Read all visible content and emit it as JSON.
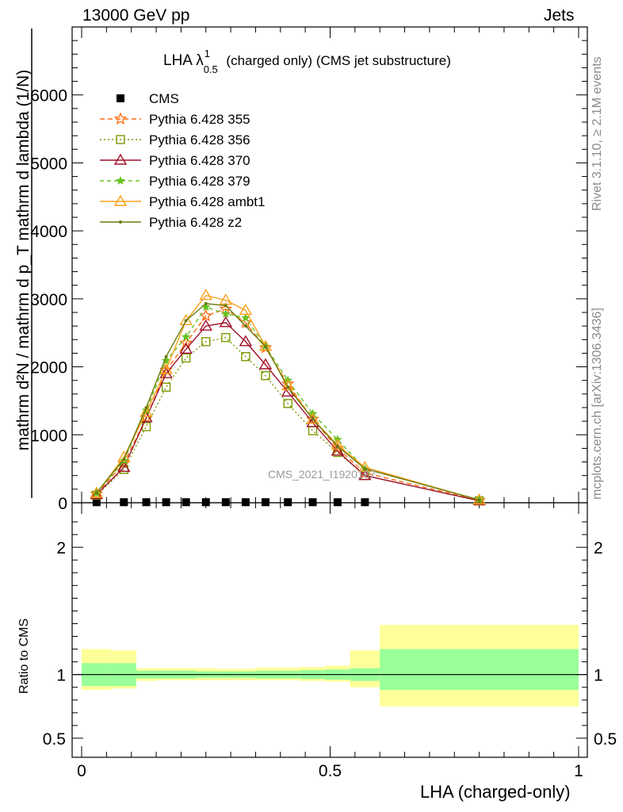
{
  "header": {
    "energy": "13000 GeV pp",
    "category": "Jets"
  },
  "side_labels": {
    "rivet": "Rivet 3.1.10, ≥ 2.1M events",
    "mcplots": "mcplots.cern.ch [arXiv:1306.3436]"
  },
  "watermark": "CMS_2021_I1920187",
  "plot_title": {
    "main": "LHA λ",
    "sup": "1",
    "sub": "0.5",
    "rest": " (charged only) (CMS jet substructure)"
  },
  "ylabel_upper": "mathrm d²N / mathrm d p_T mathrm d lambda (1/N)",
  "ylabel_ratio": "Ratio to CMS",
  "xlabel": "LHA (charged-only)",
  "colors": {
    "cms": "#000000",
    "p355": "#ff6d12",
    "p356": "#7a9a01",
    "p370": "#a0102a",
    "p379": "#66c21f",
    "ambt1": "#f7a11b",
    "z2": "#6b7c0e",
    "band_inner": "#99ff99",
    "band_outer": "#ffff99"
  },
  "chart_data": [
    {
      "type": "line",
      "title": "LHA λ^1_0.5 (charged only) (CMS jet substructure)",
      "xlim": [
        0,
        1
      ],
      "ylim": [
        0,
        7000
      ],
      "x_ticks": [
        0,
        0.5,
        1
      ],
      "y_ticks": [
        0,
        1000,
        2000,
        3000,
        4000,
        5000,
        6000
      ],
      "y_tick_labels": [
        "0",
        "1000",
        "2000",
        "3000",
        "4000",
        "5000",
        "6000"
      ],
      "legend_position": "top-left",
      "x": [
        0.03,
        0.085,
        0.13,
        0.17,
        0.21,
        0.25,
        0.29,
        0.33,
        0.37,
        0.415,
        0.465,
        0.515,
        0.57,
        0.8
      ],
      "series": [
        {
          "name": "CMS",
          "marker": "square",
          "values": [
            8,
            8,
            8,
            8,
            8,
            8,
            8,
            8,
            8,
            8,
            8,
            8,
            8,
            null
          ]
        },
        {
          "name": "Pythia 6.428 355",
          "marker": "star",
          "dash": "6,4",
          "values": [
            130,
            580,
            1250,
            1950,
            2350,
            2750,
            2850,
            2650,
            2280,
            1750,
            1230,
            800,
            440,
            35
          ]
        },
        {
          "name": "Pythia 6.428 356",
          "marker": "open-square",
          "dash": "2,3",
          "values": [
            110,
            490,
            1120,
            1700,
            2130,
            2370,
            2430,
            2150,
            1870,
            1460,
            1060,
            740,
            400,
            28
          ]
        },
        {
          "name": "Pythia 6.428 370",
          "marker": "open-triangle",
          "dash": "",
          "values": [
            120,
            520,
            1250,
            1900,
            2260,
            2600,
            2650,
            2370,
            2030,
            1630,
            1180,
            760,
            400,
            30
          ]
        },
        {
          "name": "Pythia 6.428 379",
          "marker": "star-small",
          "dash": "5,4",
          "values": [
            140,
            620,
            1360,
            2090,
            2440,
            2880,
            2780,
            2720,
            2300,
            1800,
            1310,
            930,
            500,
            45
          ]
        },
        {
          "name": "Pythia 6.428 ambt1",
          "marker": "open-triangle",
          "dash": "",
          "values": [
            140,
            670,
            1330,
            1960,
            2680,
            3050,
            2980,
            2830,
            2300,
            1720,
            1230,
            850,
            520,
            40
          ]
        },
        {
          "name": "Pythia 6.428 z2",
          "marker": "dot",
          "dash": "",
          "values": [
            145,
            640,
            1400,
            2150,
            2680,
            2930,
            2900,
            2600,
            2300,
            1700,
            1230,
            830,
            500,
            42
          ]
        }
      ]
    },
    {
      "type": "area",
      "ylabel": "Ratio to CMS",
      "xlim": [
        0,
        1
      ],
      "ylim": [
        0.35,
        2.35
      ],
      "x_ticks": [
        0,
        0.5,
        1
      ],
      "x_tick_labels": [
        "0",
        "0.5",
        "1"
      ],
      "y_ticks": [
        0.5,
        1,
        2
      ],
      "y_tick_labels": [
        "0.5",
        "1",
        "2"
      ],
      "bins": [
        0,
        0.06,
        0.11,
        0.15,
        0.19,
        0.23,
        0.27,
        0.31,
        0.35,
        0.39,
        0.44,
        0.49,
        0.54,
        0.6,
        1.0
      ],
      "inner_band": [
        [
          0.91,
          1.09
        ],
        [
          0.91,
          1.09
        ],
        [
          0.97,
          1.03
        ],
        [
          0.97,
          1.03
        ],
        [
          0.97,
          1.03
        ],
        [
          0.975,
          1.025
        ],
        [
          0.975,
          1.025
        ],
        [
          0.975,
          1.025
        ],
        [
          0.97,
          1.03
        ],
        [
          0.97,
          1.03
        ],
        [
          0.965,
          1.035
        ],
        [
          0.96,
          1.04
        ],
        [
          0.95,
          1.05
        ],
        [
          0.88,
          1.2
        ]
      ],
      "outer_band": [
        [
          0.88,
          1.2
        ],
        [
          0.89,
          1.19
        ],
        [
          0.95,
          1.05
        ],
        [
          0.955,
          1.05
        ],
        [
          0.955,
          1.05
        ],
        [
          0.955,
          1.05
        ],
        [
          0.955,
          1.045
        ],
        [
          0.955,
          1.045
        ],
        [
          0.955,
          1.055
        ],
        [
          0.955,
          1.055
        ],
        [
          0.95,
          1.06
        ],
        [
          0.945,
          1.07
        ],
        [
          0.9,
          1.19
        ],
        [
          0.75,
          1.39
        ]
      ]
    }
  ]
}
